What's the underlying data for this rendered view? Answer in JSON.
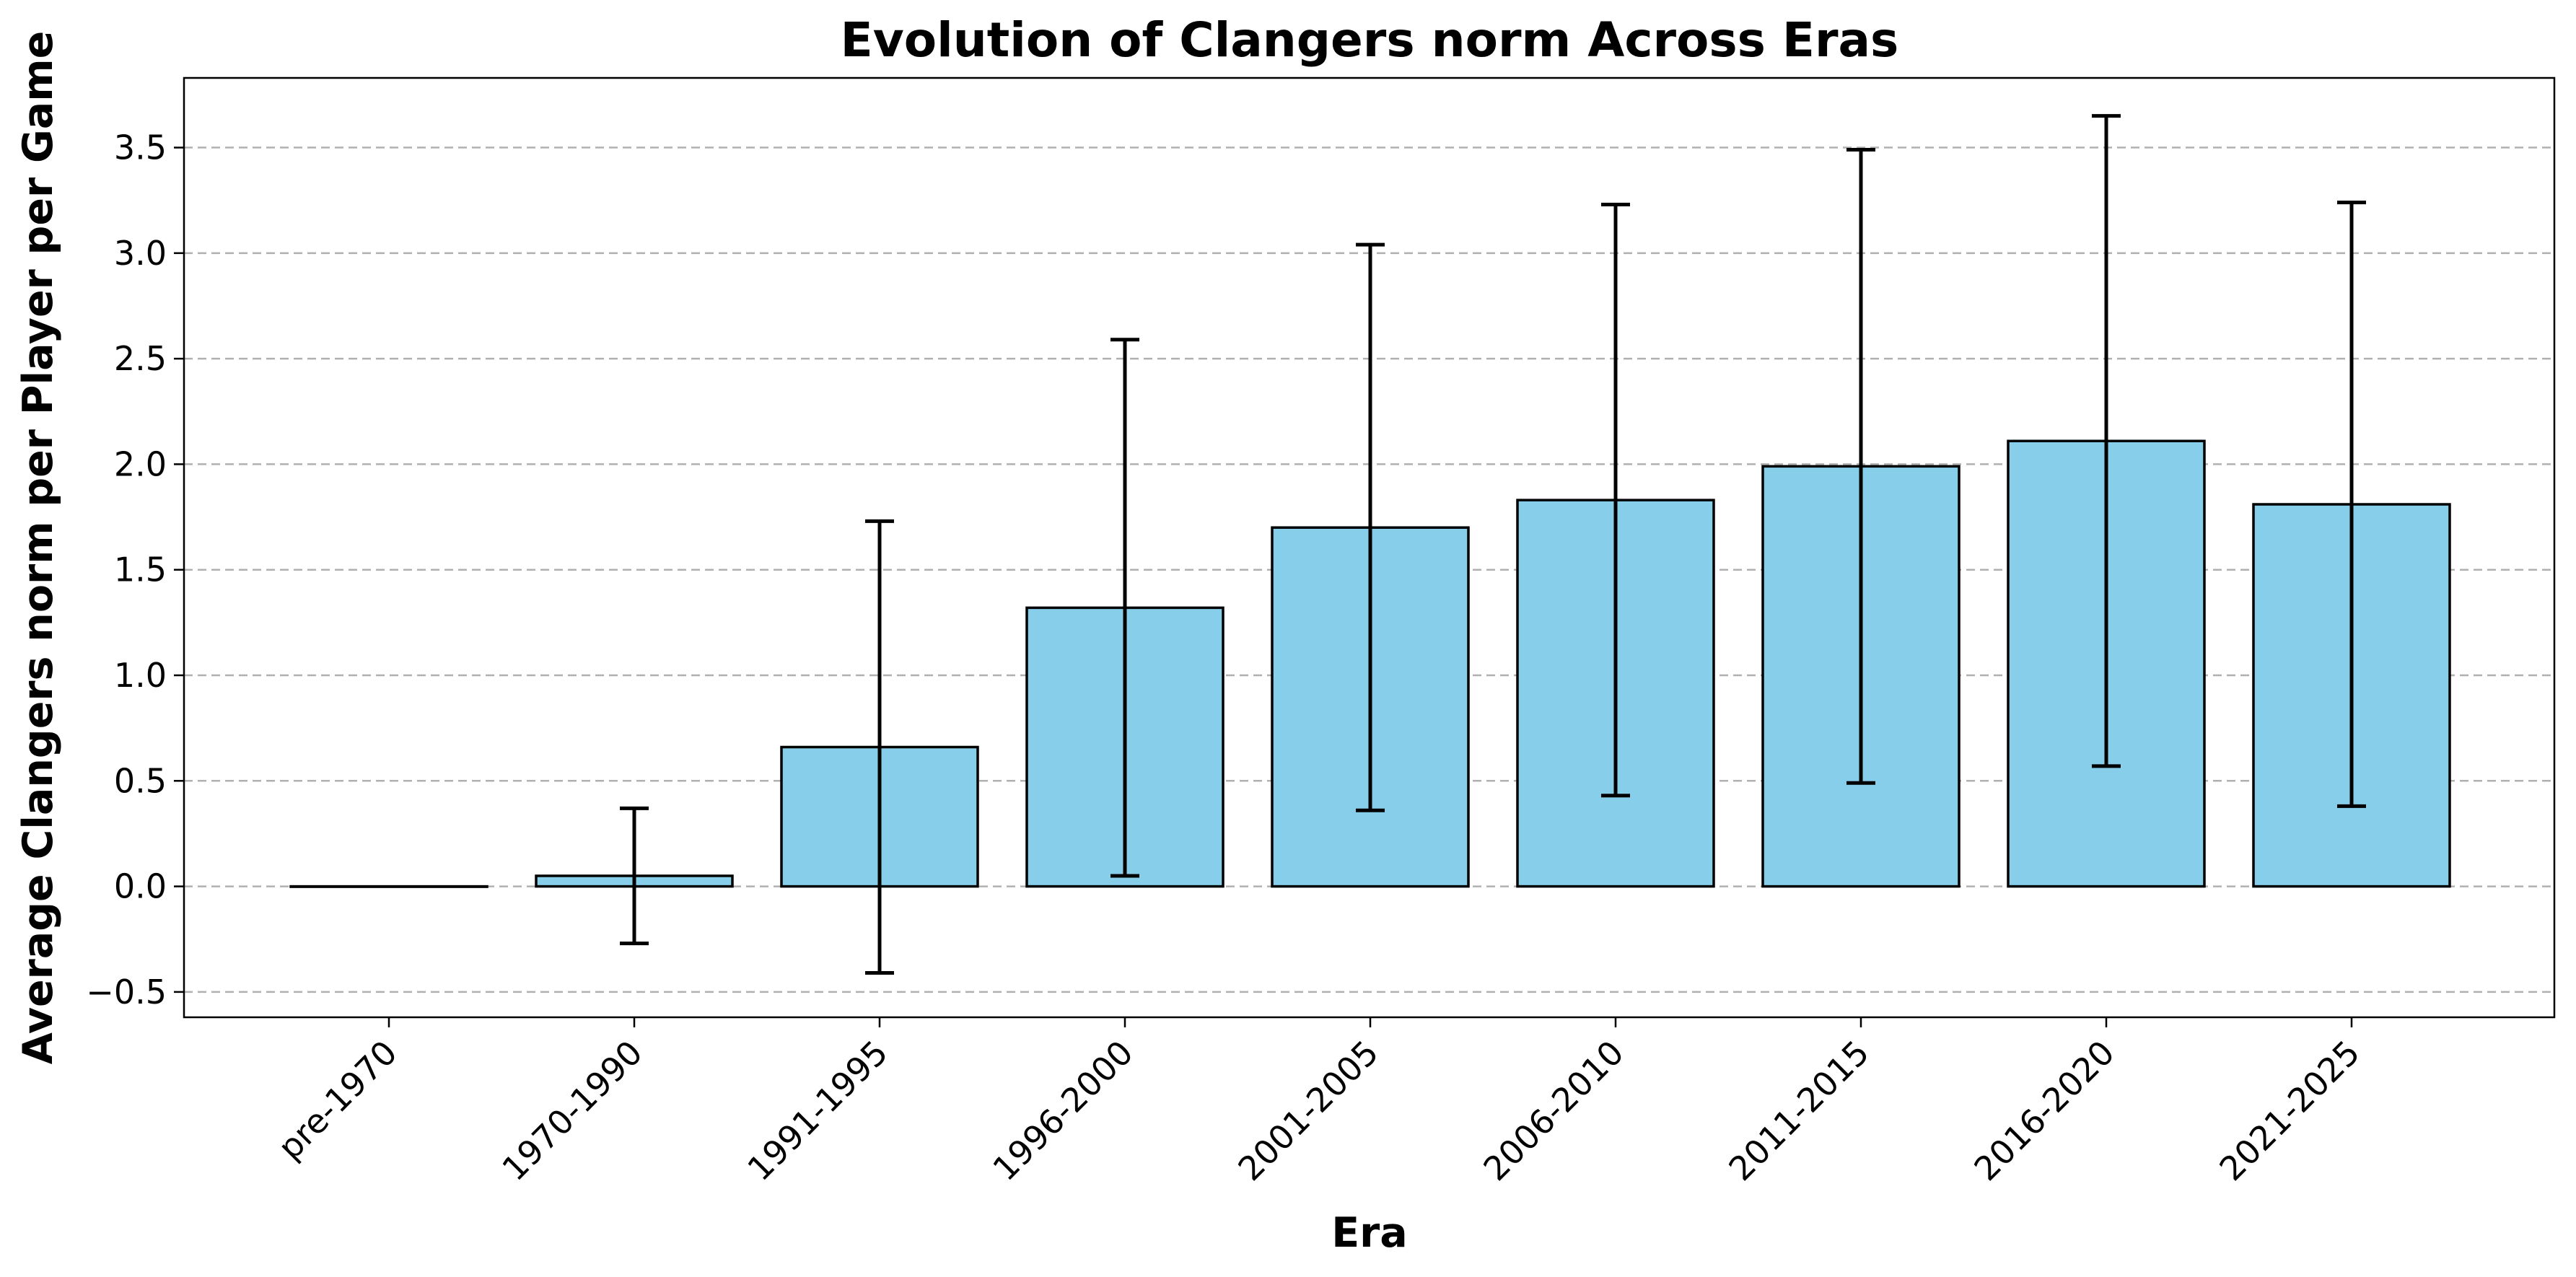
{
  "chart_data": {
    "type": "bar",
    "title": "Evolution of Clangers norm Across Eras",
    "xlabel": "Era",
    "ylabel": "Average Clangers norm per Player per Game",
    "categories": [
      "pre-1970",
      "1970-1990",
      "1991-1995",
      "1996-2000",
      "2001-2005",
      "2006-2010",
      "2011-2015",
      "2016-2020",
      "2021-2025"
    ],
    "values": [
      0.0,
      0.05,
      0.66,
      1.32,
      1.7,
      1.83,
      1.99,
      2.11,
      1.81
    ],
    "errors": [
      0.0,
      0.32,
      1.07,
      1.27,
      1.34,
      1.4,
      1.5,
      1.54,
      1.43
    ],
    "ylim": [
      -0.62,
      3.83
    ],
    "yticks": [
      -0.5,
      0.0,
      0.5,
      1.0,
      1.5,
      2.0,
      2.5,
      3.0,
      3.5
    ],
    "ytick_labels": [
      "−0.5",
      "0.0",
      "0.5",
      "1.0",
      "1.5",
      "2.0",
      "2.5",
      "3.0",
      "3.5"
    ],
    "grid": "y-dashed",
    "bar_color": "#87CEEB",
    "edge_color": "#000000",
    "grid_color": "#b0b0b0"
  }
}
